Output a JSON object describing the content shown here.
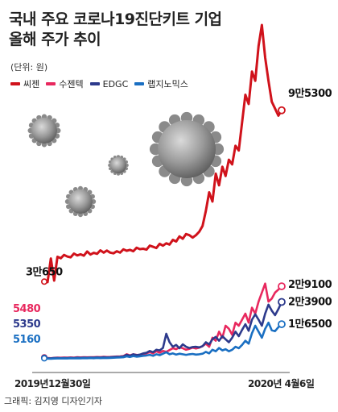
{
  "header": {
    "title_line1": "국내 주요 코로나19진단키트 기업",
    "title_line2": "올해 주가 추이",
    "unit": "(단위: 원)"
  },
  "footer": {
    "credit": "그래픽: 김지영 디자인기자"
  },
  "chart_data": {
    "type": "line",
    "title": "국내 주요 코로나19진단키트 기업 올해 주가 추이",
    "x_start_label": "2019년12월30일",
    "x_end_label": "2020년 4월6일",
    "legend_position": "top-left",
    "grid": false,
    "colors": {
      "씨젠": "#d0121b",
      "수젠텍": "#e8285e",
      "EDGC": "#2d3a8c",
      "랩지노믹스": "#1a6fc2"
    },
    "series": [
      {
        "name": "씨젠",
        "color": "#d0121b",
        "start_label": "3만650",
        "end_label": "9만5300",
        "values": [
          30650,
          30500,
          31500,
          31000,
          32200,
          31600,
          33000,
          32300,
          32000,
          33600,
          32800,
          33300,
          32700,
          34500,
          33200,
          33900,
          33500,
          35000,
          34000,
          34900,
          34000,
          33700,
          34600,
          34000,
          35400,
          34800,
          35200,
          34600,
          36100,
          35500,
          35700,
          35300,
          37000,
          36500,
          36000,
          37800,
          37000,
          38000,
          37500,
          39500,
          38800,
          41000,
          40000,
          42000,
          41500,
          40500,
          41500,
          43000,
          45500,
          52000,
          60000,
          56000,
          68000,
          63000,
          71000,
          67000,
          74000,
          72000,
          80000,
          78000,
          90000,
          102000,
          98000,
          112000,
          108000,
          123000,
          132000,
          118000,
          108000,
          99000,
          96000,
          93000,
          95300
        ]
      },
      {
        "name": "수젠텍",
        "color": "#e8285e",
        "start_label": "5480",
        "end_label": "2만9100",
        "values": [
          5480,
          5300,
          5200,
          5320,
          5400,
          5350,
          5420,
          5380,
          5460,
          5400,
          5500,
          5450,
          5520,
          5470,
          5530,
          5500,
          5600,
          5550,
          5650,
          5580,
          5620,
          5700,
          5750,
          5800,
          5900,
          6500,
          6100,
          6500,
          6300,
          6100,
          6400,
          6800,
          7200,
          6800,
          7500,
          7000,
          7600,
          7300,
          7900,
          8500,
          8200,
          8800,
          8500,
          8000,
          8300,
          8700,
          8400,
          8700,
          9200,
          10000,
          9000,
          12000,
          11000,
          14000,
          12000,
          16000,
          15000,
          13000,
          17000,
          16000,
          18000,
          20000,
          17000,
          22000,
          20000,
          24000,
          27000,
          30000,
          24000,
          25000,
          27000,
          28000,
          29100
        ]
      },
      {
        "name": "EDGC",
        "color": "#2d3a8c",
        "start_label": "5350",
        "end_label": "2만3900",
        "values": [
          5350,
          5200,
          5150,
          5250,
          5300,
          5220,
          5280,
          5250,
          5330,
          5270,
          5380,
          5320,
          5400,
          5350,
          5420,
          5380,
          5480,
          5420,
          5500,
          5450,
          5500,
          5580,
          5650,
          5700,
          5800,
          6300,
          6000,
          6500,
          6200,
          6400,
          6800,
          7000,
          7600,
          7200,
          8000,
          7800,
          8600,
          13300,
          10500,
          9000,
          9600,
          8500,
          9800,
          9000,
          8600,
          8900,
          9000,
          8800,
          9200,
          10500,
          9800,
          11500,
          12300,
          11000,
          12500,
          11500,
          10500,
          12000,
          14000,
          12500,
          14600,
          16500,
          14300,
          18000,
          19800,
          18000,
          16000,
          20000,
          23000,
          21000,
          19500,
          21500,
          23900
        ]
      },
      {
        "name": "랩지노믹스",
        "color": "#1a6fc2",
        "start_label": "5160",
        "end_label": "1만6500",
        "values": [
          5160,
          5050,
          5000,
          5080,
          5120,
          5100,
          5150,
          5120,
          5180,
          5140,
          5200,
          5160,
          5220,
          5180,
          5240,
          5200,
          5260,
          5220,
          5280,
          5240,
          5300,
          5350,
          5400,
          5450,
          5500,
          5800,
          5600,
          5900,
          5700,
          5800,
          6000,
          6100,
          6300,
          6000,
          6500,
          6200,
          6700,
          7200,
          6500,
          6800,
          6400,
          6700,
          6500,
          6300,
          6500,
          6600,
          6400,
          6500,
          6700,
          7300,
          6800,
          8000,
          7500,
          8600,
          7800,
          8200,
          7500,
          8000,
          9000,
          8500,
          9600,
          11000,
          10000,
          13500,
          16000,
          14000,
          12000,
          15000,
          17000,
          14500,
          14200,
          15500,
          16500
        ]
      }
    ]
  }
}
